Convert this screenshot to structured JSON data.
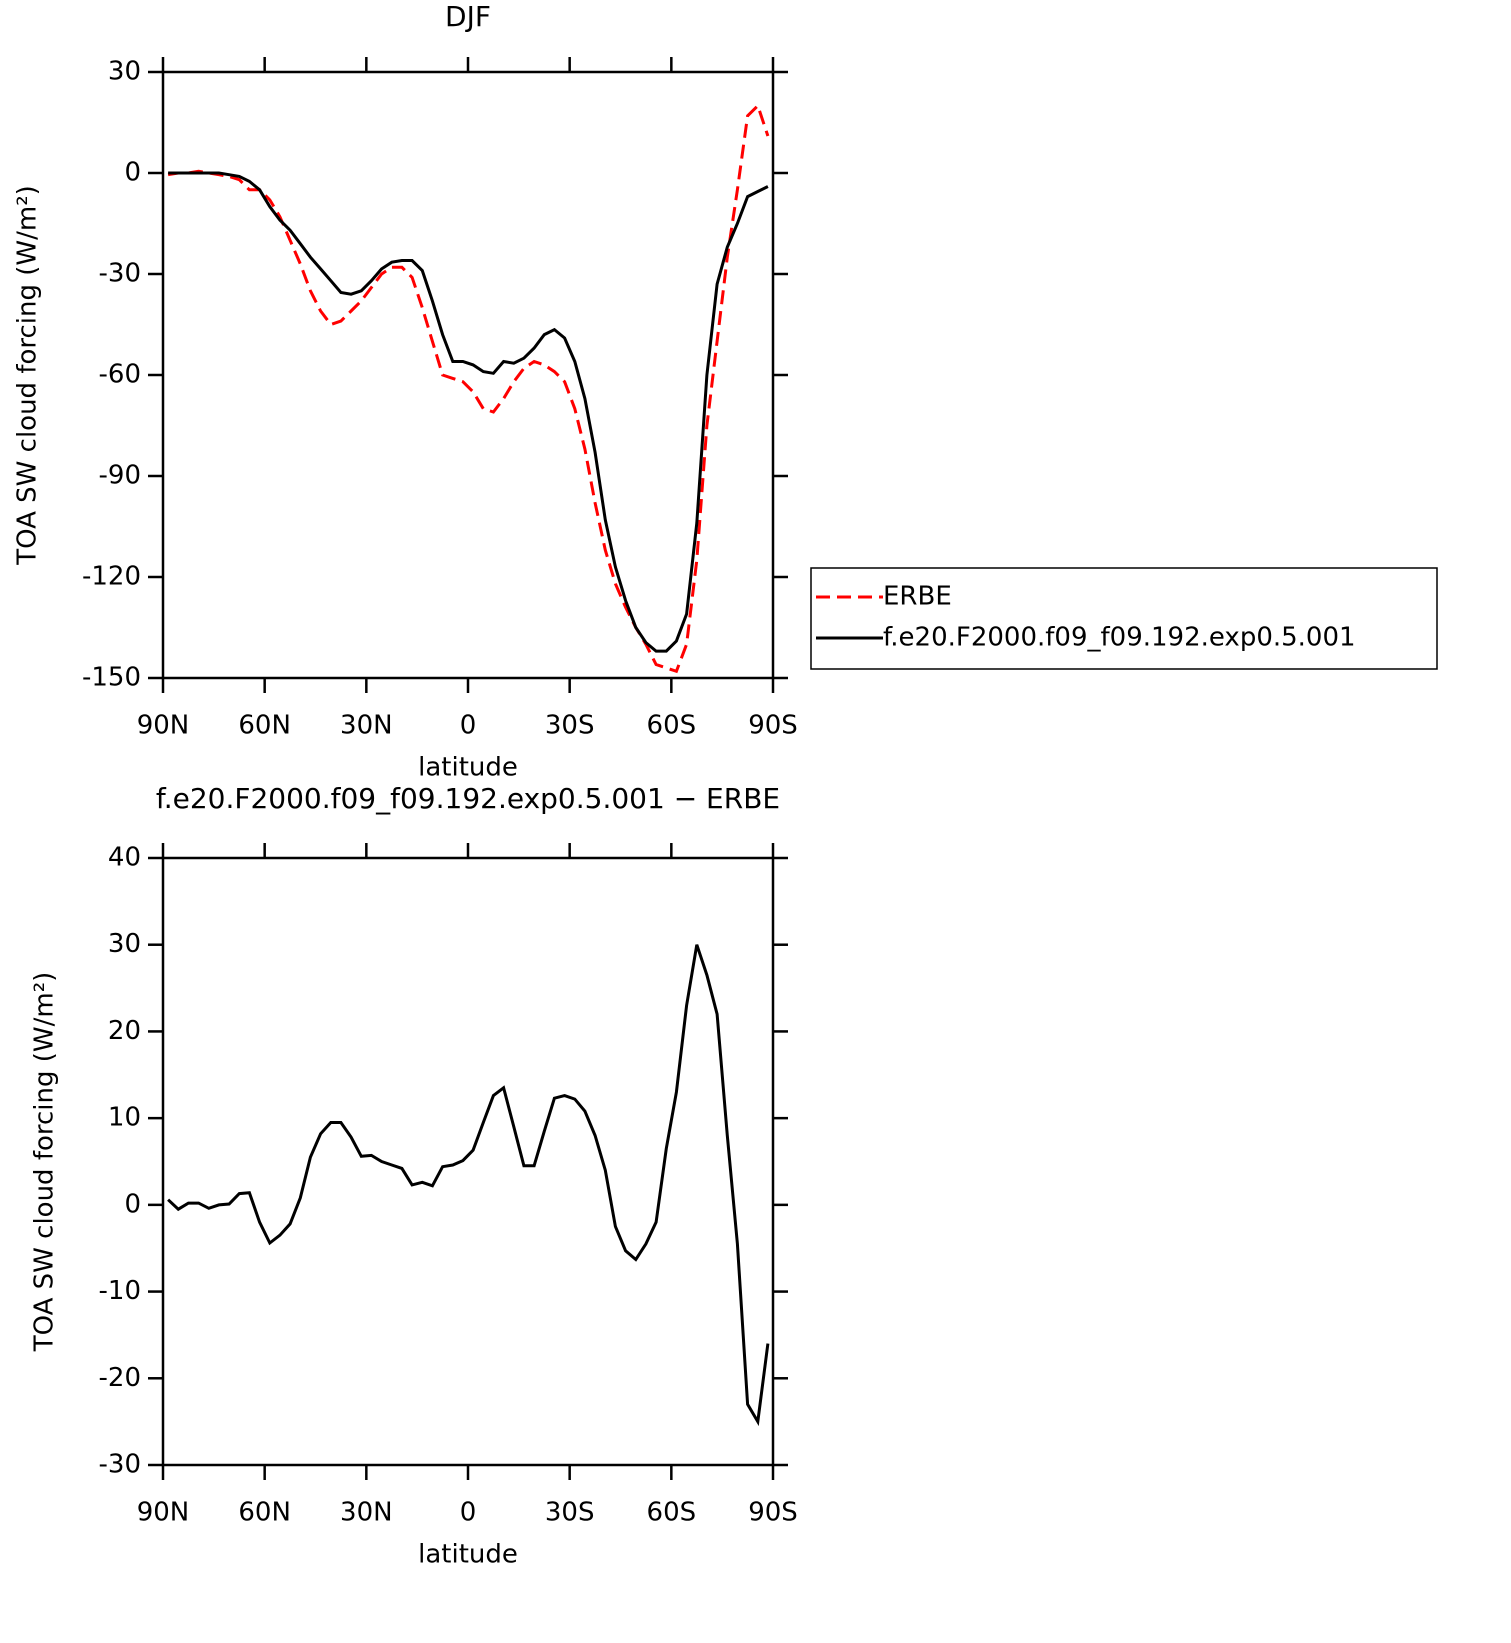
{
  "chart_data": [
    {
      "type": "line",
      "title": "DJF",
      "xlabel": "latitude",
      "ylabel": "TOA SW cloud forcing (W/m²)",
      "x": [
        88.5,
        85.5,
        82.5,
        79.5,
        76.5,
        73.5,
        70.5,
        67.5,
        64.5,
        61.5,
        58.5,
        55.5,
        52.5,
        49.5,
        46.5,
        43.5,
        40.5,
        37.5,
        34.5,
        31.5,
        28.5,
        25.5,
        22.5,
        19.5,
        16.5,
        13.5,
        10.5,
        7.5,
        4.5,
        1.5,
        -1.5,
        -4.5,
        -7.5,
        -10.5,
        -13.5,
        -16.5,
        -19.5,
        -22.5,
        -25.5,
        -28.5,
        -31.5,
        -34.5,
        -37.5,
        -40.5,
        -43.5,
        -46.5,
        -49.5,
        -52.5,
        -55.5,
        -58.5,
        -61.5,
        -64.5,
        -67.5,
        -70.5,
        -73.5,
        -76.5,
        -79.5,
        -82.5,
        -85.5,
        -88.5
      ],
      "xlim": [
        90,
        -90
      ],
      "xticks": [
        {
          "value": 90,
          "label": "90N"
        },
        {
          "value": 60,
          "label": "60N"
        },
        {
          "value": 30,
          "label": "30N"
        },
        0,
        {
          "value": -30,
          "label": "30S"
        },
        {
          "value": -60,
          "label": "60S"
        },
        {
          "value": -90,
          "label": "90S"
        }
      ],
      "ylim": [
        -150,
        30
      ],
      "yticks": [
        30,
        0,
        -30,
        -60,
        -90,
        -120,
        -150
      ],
      "legend": "right",
      "series": [
        {
          "name": "ERBE",
          "color": "#ff0000",
          "style": "dashed",
          "values": [
            -0.5,
            0,
            0,
            0.5,
            0,
            -0.5,
            -1,
            -2,
            -5,
            -5,
            -8,
            -13,
            -20,
            -27,
            -35,
            -41,
            -45,
            -44,
            -41,
            -38,
            -34,
            -30,
            -28,
            -28,
            -31,
            -40,
            -50,
            -60,
            -61,
            -62,
            -65,
            -70,
            -71,
            -67,
            -62,
            -58,
            -56,
            -57,
            -59,
            -62,
            -70,
            -82,
            -98,
            -112,
            -122,
            -129,
            -135,
            -140,
            -146,
            -147,
            -148,
            -140,
            -115,
            -75,
            -50,
            -25,
            -5,
            17,
            20,
            11
          ]
        },
        {
          "name": "f.e20.F2000.f09_f09.192.exp0.5.001",
          "color": "#000000",
          "style": "solid",
          "values": [
            0,
            0,
            0,
            0,
            0,
            0,
            -0.5,
            -1,
            -2.5,
            -5,
            -10,
            -14,
            -17,
            -21,
            -25,
            -28.5,
            -32,
            -35.5,
            -36,
            -35,
            -32,
            -28.5,
            -26.5,
            -26,
            -26,
            -29,
            -38,
            -48,
            -56,
            -56,
            -57,
            -59,
            -59.5,
            -56,
            -56.5,
            -55,
            -52,
            -48,
            -46.5,
            -49,
            -56,
            -67,
            -83,
            -103,
            -117,
            -127,
            -135,
            -139.5,
            -142,
            -142,
            -139,
            -131,
            -104,
            -60,
            -33,
            -22,
            -15,
            -7,
            -5.5,
            -4
          ]
        }
      ]
    },
    {
      "type": "line",
      "title": "f.e20.F2000.f09_f09.192.exp0.5.001 − ERBE",
      "xlabel": "latitude",
      "ylabel": "TOA SW cloud forcing (W/m²)",
      "x": [
        88.5,
        85.5,
        82.5,
        79.5,
        76.5,
        73.5,
        70.5,
        67.5,
        64.5,
        61.5,
        58.5,
        55.5,
        52.5,
        49.5,
        46.5,
        43.5,
        40.5,
        37.5,
        34.5,
        31.5,
        28.5,
        25.5,
        22.5,
        19.5,
        16.5,
        13.5,
        10.5,
        7.5,
        4.5,
        1.5,
        -1.5,
        -4.5,
        -7.5,
        -10.5,
        -13.5,
        -16.5,
        -19.5,
        -22.5,
        -25.5,
        -28.5,
        -31.5,
        -34.5,
        -37.5,
        -40.5,
        -43.5,
        -46.5,
        -49.5,
        -52.5,
        -55.5,
        -58.5,
        -61.5,
        -64.5,
        -67.5,
        -70.5,
        -73.5,
        -76.5,
        -79.5,
        -82.5,
        -85.5,
        -88.5
      ],
      "xlim": [
        90,
        -90
      ],
      "xticks": [
        {
          "value": 90,
          "label": "90N"
        },
        {
          "value": 60,
          "label": "60N"
        },
        {
          "value": 30,
          "label": "30N"
        },
        0,
        {
          "value": -30,
          "label": "30S"
        },
        {
          "value": -60,
          "label": "60S"
        },
        {
          "value": -90,
          "label": "90S"
        }
      ],
      "ylim": [
        -30,
        40
      ],
      "yticks": [
        40,
        30,
        20,
        10,
        0,
        -10,
        -20,
        -30
      ],
      "series": [
        {
          "color": "#000000",
          "style": "solid",
          "values": [
            0.6,
            -0.5,
            0.2,
            0.2,
            -0.4,
            0,
            0.1,
            1.3,
            1.4,
            -2,
            -4.4,
            -3.5,
            -2.2,
            0.8,
            5.5,
            8.2,
            9.5,
            9.5,
            7.8,
            5.6,
            5.7,
            5,
            4.6,
            4.2,
            2.3,
            2.6,
            2.2,
            4.4,
            4.6,
            5.1,
            6.3,
            9.5,
            12.6,
            13.5,
            9,
            4.5,
            4.5,
            8.5,
            12.3,
            12.6,
            12.2,
            10.8,
            8,
            4,
            -2.5,
            -5.3,
            -6.3,
            -4.5,
            -2,
            6.5,
            13,
            23,
            30,
            26.5,
            22,
            8,
            -4.5,
            -23,
            -25,
            -16
          ]
        }
      ]
    }
  ]
}
